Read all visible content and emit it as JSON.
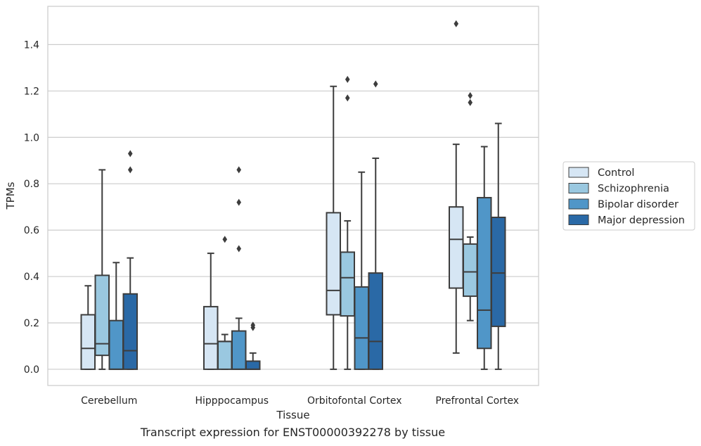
{
  "chart_data": {
    "type": "box",
    "xlabel": "Tissue",
    "ylabel": "TPMs",
    "ylim": [
      -0.07,
      1.565
    ],
    "yticks": [
      0.0,
      0.2,
      0.4,
      0.6,
      0.8,
      1.0,
      1.2,
      1.4
    ],
    "ytick_labels": [
      "0.0",
      "0.2",
      "0.4",
      "0.6",
      "0.8",
      "1.0",
      "1.2",
      "1.4"
    ],
    "grid": "horizontal",
    "legend_position": "right",
    "categories": [
      "Cerebellum",
      "Hipppocampus",
      "Orbitofontal Cortex",
      "Prefrontal Cortex"
    ],
    "series": [
      {
        "name": "Control",
        "color": "#d6e6f4",
        "boxes": [
          {
            "min": 0.0,
            "q1": 0.0,
            "median": 0.09,
            "q3": 0.235,
            "max": 0.36,
            "outliers": []
          },
          {
            "min": 0.0,
            "q1": 0.0,
            "median": 0.11,
            "q3": 0.27,
            "max": 0.5,
            "outliers": []
          },
          {
            "min": 0.0,
            "q1": 0.235,
            "median": 0.34,
            "q3": 0.675,
            "max": 1.22,
            "outliers": []
          },
          {
            "min": 0.07,
            "q1": 0.35,
            "median": 0.56,
            "q3": 0.7,
            "max": 0.97,
            "outliers": [
              1.49
            ]
          }
        ]
      },
      {
        "name": "Schizophrenia",
        "color": "#9ac8e0",
        "boxes": [
          {
            "min": 0.0,
            "q1": 0.06,
            "median": 0.11,
            "q3": 0.405,
            "max": 0.86,
            "outliers": []
          },
          {
            "min": 0.0,
            "q1": 0.0,
            "median": 0.12,
            "q3": 0.12,
            "max": 0.15,
            "outliers": [
              0.56
            ]
          },
          {
            "min": 0.0,
            "q1": 0.23,
            "median": 0.395,
            "q3": 0.505,
            "max": 0.64,
            "outliers": [
              1.17,
              1.25
            ]
          },
          {
            "min": 0.21,
            "q1": 0.315,
            "median": 0.42,
            "q3": 0.54,
            "max": 0.57,
            "outliers": [
              1.15,
              1.18
            ]
          }
        ]
      },
      {
        "name": "Bipolar disorder",
        "color": "#5096c8",
        "boxes": [
          {
            "min": 0.0,
            "q1": 0.0,
            "median": 0.0,
            "q3": 0.21,
            "max": 0.46,
            "outliers": []
          },
          {
            "min": 0.0,
            "q1": 0.0,
            "median": 0.0,
            "q3": 0.165,
            "max": 0.22,
            "outliers": [
              0.52,
              0.72,
              0.86
            ]
          },
          {
            "min": 0.0,
            "q1": 0.0,
            "median": 0.135,
            "q3": 0.355,
            "max": 0.85,
            "outliers": []
          },
          {
            "min": 0.0,
            "q1": 0.09,
            "median": 0.255,
            "q3": 0.74,
            "max": 0.96,
            "outliers": []
          }
        ]
      },
      {
        "name": "Major depression",
        "color": "#2a69a6",
        "boxes": [
          {
            "min": 0.0,
            "q1": 0.0,
            "median": 0.08,
            "q3": 0.325,
            "max": 0.48,
            "outliers": [
              0.86,
              0.93
            ]
          },
          {
            "min": 0.0,
            "q1": 0.0,
            "median": 0.0,
            "q3": 0.035,
            "max": 0.07,
            "outliers": [
              0.18,
              0.19
            ]
          },
          {
            "min": 0.0,
            "q1": 0.0,
            "median": 0.12,
            "q3": 0.415,
            "max": 0.91,
            "outliers": [
              1.23
            ]
          },
          {
            "min": 0.0,
            "q1": 0.185,
            "median": 0.415,
            "q3": 0.655,
            "max": 1.06,
            "outliers": []
          }
        ]
      }
    ]
  },
  "caption": "Transcript expression for ENST00000392278 by tissue"
}
